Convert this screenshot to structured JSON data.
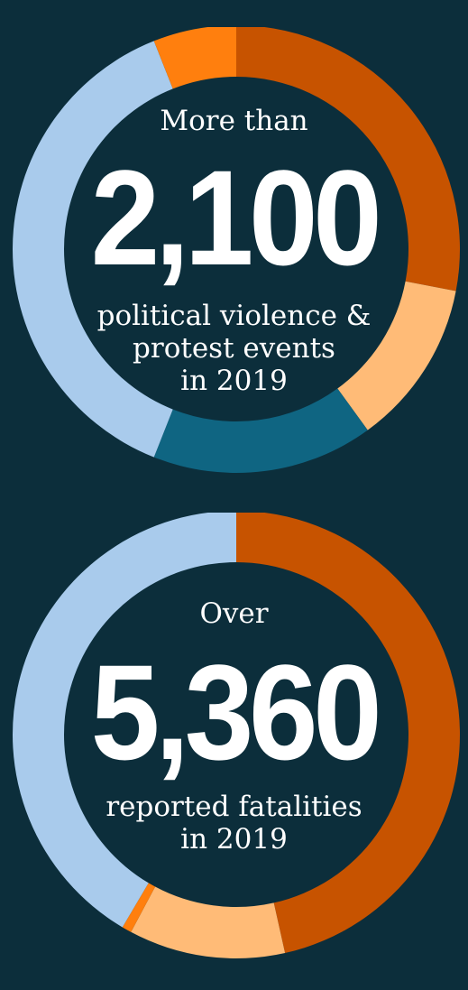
{
  "chart_data": [
    {
      "type": "pie",
      "donut": true,
      "prefix": "More than",
      "number": "2,100",
      "description_lines": [
        "political violence &",
        "protest events",
        "in 2019"
      ],
      "values": [
        28,
        12,
        16,
        38,
        6
      ],
      "colors": [
        "#c75300",
        "#ffbb77",
        "#0f6582",
        "#a9cbec",
        "#ff7f0e"
      ]
    },
    {
      "type": "pie",
      "donut": true,
      "prefix": "Over",
      "number": "5,360",
      "description_lines": [
        "reported fatalities",
        "in 2019"
      ],
      "values": [
        46.5,
        11.3,
        0.7,
        41.5
      ],
      "colors": [
        "#c75300",
        "#ffbb77",
        "#ff7f0e",
        "#a9cbec"
      ]
    }
  ],
  "colors": {
    "background": "#0c2e3b",
    "text": "#ffffff"
  }
}
